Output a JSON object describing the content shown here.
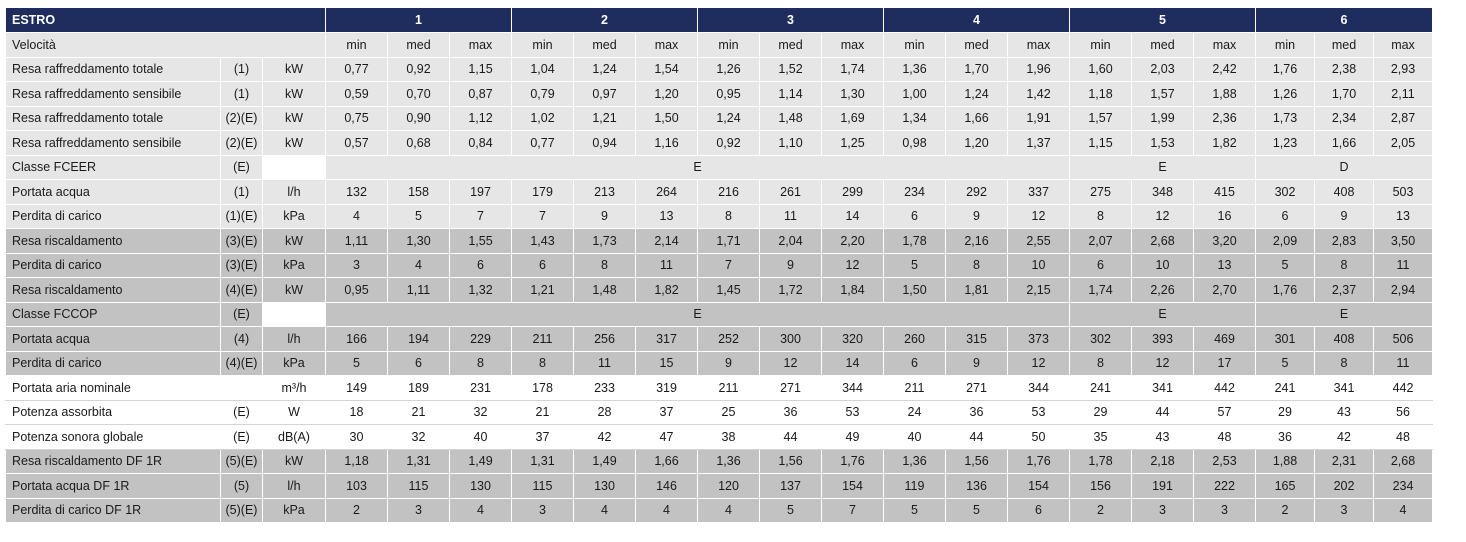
{
  "table": {
    "title": "ESTRO",
    "groups": [
      "1",
      "2",
      "3",
      "4",
      "5",
      "6"
    ],
    "speed_label": "Velocità",
    "speeds": [
      "min",
      "med",
      "max",
      "min",
      "med",
      "max",
      "min",
      "med",
      "max",
      "min",
      "med",
      "max",
      "min",
      "med",
      "max",
      "min",
      "med",
      "max"
    ],
    "rows": [
      {
        "label": "Resa raffreddamento totale",
        "note": "(1)",
        "unit": "kW",
        "shade": "light",
        "values": [
          "0,77",
          "0,92",
          "1,15",
          "1,04",
          "1,24",
          "1,54",
          "1,26",
          "1,52",
          "1,74",
          "1,36",
          "1,70",
          "1,96",
          "1,60",
          "2,03",
          "2,42",
          "1,76",
          "2,38",
          "2,93"
        ]
      },
      {
        "label": "Resa raffreddamento sensibile",
        "note": "(1)",
        "unit": "kW",
        "shade": "light",
        "values": [
          "0,59",
          "0,70",
          "0,87",
          "0,79",
          "0,97",
          "1,20",
          "0,95",
          "1,14",
          "1,30",
          "1,00",
          "1,24",
          "1,42",
          "1,18",
          "1,57",
          "1,88",
          "1,26",
          "1,70",
          "2,11"
        ]
      },
      {
        "label": "Resa raffreddamento totale",
        "note": "(2)(E)",
        "unit": "kW",
        "shade": "light",
        "values": [
          "0,75",
          "0,90",
          "1,12",
          "1,02",
          "1,21",
          "1,50",
          "1,24",
          "1,48",
          "1,69",
          "1,34",
          "1,66",
          "1,91",
          "1,57",
          "1,99",
          "2,36",
          "1,73",
          "2,34",
          "2,87"
        ]
      },
      {
        "label": "Resa raffreddamento sensibile",
        "note": "(2)(E)",
        "unit": "kW",
        "shade": "light",
        "values": [
          "0,57",
          "0,68",
          "0,84",
          "0,77",
          "0,94",
          "1,16",
          "0,92",
          "1,10",
          "1,25",
          "0,98",
          "1,20",
          "1,37",
          "1,15",
          "1,53",
          "1,82",
          "1,23",
          "1,66",
          "2,05"
        ]
      },
      {
        "label": "Classe FCEER",
        "note": "(E)",
        "unit": "",
        "shade": "light",
        "classes": [
          "E",
          "E",
          "D"
        ]
      },
      {
        "label": "Portata acqua",
        "note": "(1)",
        "unit": "l/h",
        "shade": "light",
        "values": [
          "132",
          "158",
          "197",
          "179",
          "213",
          "264",
          "216",
          "261",
          "299",
          "234",
          "292",
          "337",
          "275",
          "348",
          "415",
          "302",
          "408",
          "503"
        ]
      },
      {
        "label": "Perdita di carico",
        "note": "(1)(E)",
        "unit": "kPa",
        "shade": "light",
        "values": [
          "4",
          "5",
          "7",
          "7",
          "9",
          "13",
          "8",
          "11",
          "14",
          "6",
          "9",
          "12",
          "8",
          "12",
          "16",
          "6",
          "9",
          "13"
        ]
      },
      {
        "label": "Resa riscaldamento",
        "note": "(3)(E)",
        "unit": "kW",
        "shade": "dark",
        "values": [
          "1,11",
          "1,30",
          "1,55",
          "1,43",
          "1,73",
          "2,14",
          "1,71",
          "2,04",
          "2,20",
          "1,78",
          "2,16",
          "2,55",
          "2,07",
          "2,68",
          "3,20",
          "2,09",
          "2,83",
          "3,50"
        ]
      },
      {
        "label": "Perdita di carico",
        "note": "(3)(E)",
        "unit": "kPa",
        "shade": "dark",
        "values": [
          "3",
          "4",
          "6",
          "6",
          "8",
          "11",
          "7",
          "9",
          "12",
          "5",
          "8",
          "10",
          "6",
          "10",
          "13",
          "5",
          "8",
          "11"
        ]
      },
      {
        "label": "Resa riscaldamento",
        "note": "(4)(E)",
        "unit": "kW",
        "shade": "dark",
        "values": [
          "0,95",
          "1,11",
          "1,32",
          "1,21",
          "1,48",
          "1,82",
          "1,45",
          "1,72",
          "1,84",
          "1,50",
          "1,81",
          "2,15",
          "1,74",
          "2,26",
          "2,70",
          "1,76",
          "2,37",
          "2,94"
        ]
      },
      {
        "label": "Classe FCCOP",
        "note": "(E)",
        "unit": "",
        "shade": "dark",
        "classes": [
          "E",
          "E",
          "E"
        ]
      },
      {
        "label": "Portata acqua",
        "note": "(4)",
        "unit": "l/h",
        "shade": "dark",
        "values": [
          "166",
          "194",
          "229",
          "211",
          "256",
          "317",
          "252",
          "300",
          "320",
          "260",
          "315",
          "373",
          "302",
          "393",
          "469",
          "301",
          "408",
          "506"
        ]
      },
      {
        "label": "Perdita di carico",
        "note": "(4)(E)",
        "unit": "kPa",
        "shade": "dark",
        "values": [
          "5",
          "6",
          "8",
          "8",
          "11",
          "15",
          "9",
          "12",
          "14",
          "6",
          "9",
          "12",
          "8",
          "12",
          "17",
          "5",
          "8",
          "11"
        ]
      },
      {
        "label": "Portata aria nominale",
        "note": "",
        "unit": "m³/h",
        "shade": "plain",
        "values": [
          "149",
          "189",
          "231",
          "178",
          "233",
          "319",
          "211",
          "271",
          "344",
          "211",
          "271",
          "344",
          "241",
          "341",
          "442",
          "241",
          "341",
          "442"
        ]
      },
      {
        "label": "Potenza assorbita",
        "note": "(E)",
        "unit": "W",
        "shade": "plain",
        "values": [
          "18",
          "21",
          "32",
          "21",
          "28",
          "37",
          "25",
          "36",
          "53",
          "24",
          "36",
          "53",
          "29",
          "44",
          "57",
          "29",
          "43",
          "56"
        ]
      },
      {
        "label": "Potenza sonora globale",
        "note": "(E)",
        "unit": "dB(A)",
        "shade": "plain",
        "values": [
          "30",
          "32",
          "40",
          "37",
          "42",
          "47",
          "38",
          "44",
          "49",
          "40",
          "44",
          "50",
          "35",
          "43",
          "48",
          "36",
          "42",
          "48"
        ]
      },
      {
        "label": "Resa riscaldamento DF 1R",
        "note": "(5)(E)",
        "unit": "kW",
        "shade": "dark",
        "values": [
          "1,18",
          "1,31",
          "1,49",
          "1,31",
          "1,49",
          "1,66",
          "1,36",
          "1,56",
          "1,76",
          "1,36",
          "1,56",
          "1,76",
          "1,78",
          "2,18",
          "2,53",
          "1,88",
          "2,31",
          "2,68"
        ]
      },
      {
        "label": "Portata acqua DF 1R",
        "note": "(5)",
        "unit": "l/h",
        "shade": "dark",
        "values": [
          "103",
          "115",
          "130",
          "115",
          "130",
          "146",
          "120",
          "137",
          "154",
          "119",
          "136",
          "154",
          "156",
          "191",
          "222",
          "165",
          "202",
          "234"
        ]
      },
      {
        "label": "Perdita di carico DF 1R",
        "note": "(5)(E)",
        "unit": "kPa",
        "shade": "dark",
        "values": [
          "2",
          "3",
          "4",
          "3",
          "4",
          "4",
          "4",
          "5",
          "7",
          "5",
          "5",
          "6",
          "2",
          "3",
          "3",
          "2",
          "3",
          "4"
        ]
      }
    ]
  }
}
